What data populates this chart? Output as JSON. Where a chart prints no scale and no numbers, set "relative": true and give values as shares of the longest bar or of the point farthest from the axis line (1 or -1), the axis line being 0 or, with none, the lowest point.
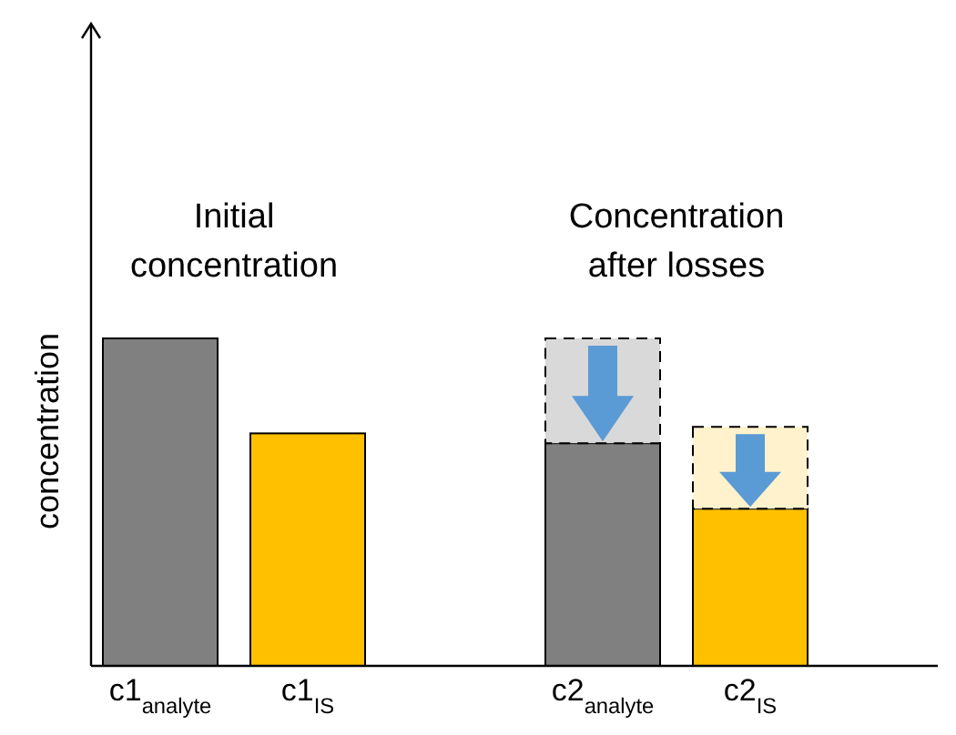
{
  "chart_data": {
    "type": "bar",
    "relative": true,
    "stacked": true,
    "ylabel": "concentration",
    "categories": [
      "c1$_{analyte}$",
      "c1$_{IS}$",
      "c2$_{analyte}$",
      "c2$_{IS}$"
    ],
    "series": [
      {
        "colors": [
          "#808080",
          "#ffc000",
          "#808080",
          "#ffc000"
        ],
        "values": [
          1,
          0.71,
          0.68,
          0.48
        ]
      },
      {
        "colors": [
          null,
          null,
          "#d9d9d9",
          "#fff2cc"
        ],
        "values": [
          null,
          null,
          0.32,
          0.25
        ],
        "line_style": "dashed"
      }
    ],
    "annotations": [
      "Initial concentration",
      "Concentration after losses"
    ]
  }
}
